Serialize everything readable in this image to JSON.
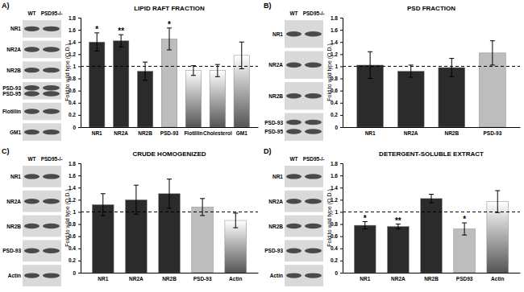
{
  "chart_data": [
    {
      "type": "bar",
      "panel": "A)",
      "title": "LIPID RAFT FRACTION",
      "y_label": "Fold to wild type (O.D.)",
      "categories": [
        "NR1",
        "NR2A",
        "NR2B",
        "PSD-93",
        "Flotillin",
        "Cholesterol",
        "GM1"
      ],
      "values": [
        1.4,
        1.42,
        0.92,
        1.45,
        0.93,
        0.93,
        1.18
      ],
      "errors": [
        0.15,
        0.1,
        0.15,
        0.18,
        0.08,
        0.1,
        0.22
      ],
      "significance": [
        "*",
        "**",
        null,
        "*",
        null,
        null,
        null
      ],
      "colors": [
        "#2b2b2b",
        "#2b2b2b",
        "#2b2b2b",
        "#bdbdbd",
        "#555555",
        "#555555",
        "#555555"
      ],
      "baseline": 1,
      "ylim": [
        0,
        1.8
      ],
      "yticks": [
        0,
        0.2,
        0.4,
        0.6,
        0.8,
        1,
        1.2,
        1.4,
        1.6,
        1.8
      ],
      "blot_columns": [
        "WT",
        "PSD95-/-"
      ],
      "blot_rows": [
        [
          "NR1"
        ],
        [
          "NR2A"
        ],
        [
          "NR2B"
        ],
        [
          "PSD-93",
          "PSD-95"
        ],
        [
          "Flotillin"
        ],
        [
          "GM1"
        ]
      ]
    },
    {
      "type": "bar",
      "panel": "B)",
      "title": "PSD FRACTION",
      "y_label": "Fold to wild type (O.D.)",
      "categories": [
        "NR1",
        "NR2A",
        "NR2B",
        "PSD-93"
      ],
      "values": [
        1.02,
        0.92,
        0.98,
        1.22
      ],
      "errors": [
        0.22,
        0.1,
        0.15,
        0.2
      ],
      "colors": [
        "#2b2b2b",
        "#2b2b2b",
        "#2b2b2b",
        "#bdbdbd"
      ],
      "baseline": 1,
      "ylim": [
        0,
        1.8
      ],
      "yticks": [
        0,
        0.2,
        0.4,
        0.6,
        0.8,
        1,
        1.2,
        1.4,
        1.6,
        1.8
      ],
      "blot_columns": [
        "WT",
        "PSD95-/-"
      ],
      "blot_rows": [
        [
          "NR1"
        ],
        [
          "NR2A"
        ],
        [
          "NR2B"
        ],
        [
          "PSD-93",
          "PSD-95"
        ]
      ]
    },
    {
      "type": "bar",
      "panel": "C)",
      "title": "CRUDE HOMOGENIZED",
      "y_label": "Fold to wild type (O.D.)",
      "categories": [
        "NR1",
        "NR2A",
        "NR2B",
        "PSD-93",
        "Actin"
      ],
      "values": [
        1.12,
        1.2,
        1.3,
        1.08,
        0.86
      ],
      "errors": [
        0.18,
        0.24,
        0.24,
        0.14,
        0.12
      ],
      "colors": [
        "#2b2b2b",
        "#2b2b2b",
        "#2b2b2b",
        "#bdbdbd",
        "#555555"
      ],
      "baseline": 1,
      "ylim": [
        0,
        1.8
      ],
      "yticks": [
        0,
        0.2,
        0.4,
        0.6,
        0.8,
        1,
        1.2,
        1.4,
        1.6,
        1.8
      ],
      "blot_columns": [
        "WT",
        "PSD95-/-"
      ],
      "blot_rows": [
        [
          "NR1"
        ],
        [
          "NR2A"
        ],
        [
          "NR2B"
        ],
        [
          "PSD-93"
        ],
        [
          "Actin"
        ]
      ]
    },
    {
      "type": "bar",
      "panel": "D)",
      "title": "DETERGENT-SOLUBLE EXTRACT",
      "y_label": "Fold to wild type (O.D.)",
      "categories": [
        "NR1",
        "NR2A",
        "NR2B",
        "PSD93",
        "Actin"
      ],
      "values": [
        0.78,
        0.76,
        1.22,
        0.72,
        1.17
      ],
      "errors": [
        0.06,
        0.04,
        0.07,
        0.1,
        0.18
      ],
      "significance": [
        "*",
        "**",
        null,
        "*",
        null
      ],
      "colors": [
        "#2b2b2b",
        "#2b2b2b",
        "#2b2b2b",
        "#bdbdbd",
        "#555555"
      ],
      "baseline": 1,
      "ylim": [
        0,
        1.8
      ],
      "yticks": [
        0,
        0.2,
        0.4,
        0.6,
        0.8,
        1,
        1.2,
        1.4,
        1.6,
        1.8
      ],
      "blot_columns": [
        "WT",
        "PSD95-/-"
      ],
      "blot_rows": [
        [
          "NR1"
        ],
        [
          "NR2A"
        ],
        [
          "NR2B"
        ],
        [
          "PSD-93"
        ],
        [
          "Actin"
        ]
      ]
    }
  ]
}
